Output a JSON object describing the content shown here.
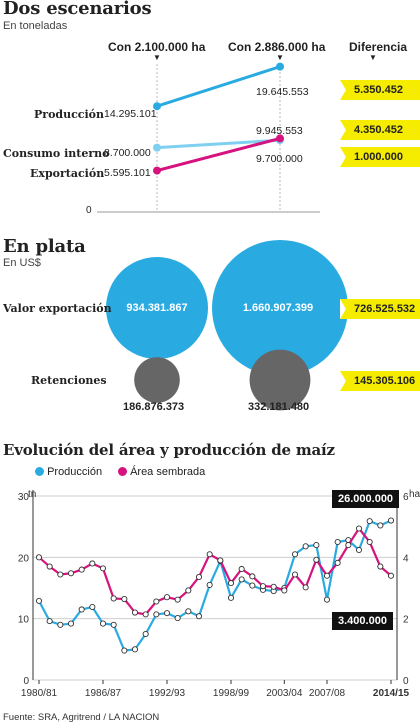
{
  "section1": {
    "title": "Dos escenarios",
    "subtitle": "En toneladas",
    "col_left": "Con 2.100.000 ha",
    "col_right": "Con 2.886.000 ha",
    "col_diff": "Diferencia",
    "zero": "0"
  },
  "section2": {
    "title": "En plata",
    "subtitle": "En US$",
    "row_export": "Valor exportación",
    "row_ret": "Retenciones",
    "diff_export": "726.525.532",
    "diff_ret": "145.305.106"
  },
  "section3": {
    "title": "Evolución del área y producción de maíz",
    "legend_prod": "Producción",
    "legend_area": "Área sembrada",
    "left_unit": "tn",
    "right_unit": "ha",
    "callout_prod": "26.000.000",
    "callout_area": "3.400.000"
  },
  "footer": "Fuente: SRA, Agritrend / LA NACION",
  "colors": {
    "cyan": "#29abe2",
    "lightblue": "#7fd0f0",
    "magenta": "#d6127e",
    "yellow": "#f5ec00",
    "gray": "#666666"
  },
  "chart_data": [
    {
      "type": "line",
      "title": "Dos escenarios",
      "subtitle": "En toneladas",
      "categories": [
        "Con 2.100.000 ha",
        "Con 2.886.000 ha"
      ],
      "series": [
        {
          "name": "Producción",
          "values": [
            14295101,
            19645553
          ],
          "labels": [
            "14.295.101",
            "19.645.553"
          ],
          "diff": "5.350.452"
        },
        {
          "name": "Consumo interno",
          "values": [
            8700000,
            9700000
          ],
          "labels": [
            "8.700.000",
            "9.700.000"
          ],
          "diff": "1.000.000"
        },
        {
          "name": "Exportación",
          "values": [
            5595101,
            9945553
          ],
          "labels": [
            "5.595.101",
            "9.945.553"
          ],
          "diff": "4.350.452"
        }
      ]
    },
    {
      "type": "scatter",
      "title": "En plata",
      "subtitle": "En US$",
      "categories": [
        "Con 2.100.000 ha",
        "Con 2.886.000 ha"
      ],
      "series": [
        {
          "name": "Valor exportación",
          "values": [
            934381867,
            1660907399
          ],
          "labels": [
            "934.381.867",
            "1.660.907.399"
          ]
        },
        {
          "name": "Retenciones",
          "values": [
            186876373,
            332181480
          ],
          "labels": [
            "186.876.373",
            "332.181.480"
          ]
        }
      ]
    },
    {
      "type": "line",
      "title": "Evolución del área y producción de maíz",
      "x_tick_labels": [
        "1980/81",
        "1986/87",
        "1992/93",
        "1998/99",
        "2003/04",
        "2007/08",
        "2014/15"
      ],
      "y_left": {
        "label": "tn",
        "ticks": [
          "0",
          "10",
          "20",
          "30"
        ],
        "range": [
          0,
          30
        ],
        "unit_scale": "millones"
      },
      "y_right": {
        "label": "ha",
        "ticks": [
          "0",
          "2",
          "4",
          "6"
        ],
        "range": [
          0,
          6
        ],
        "unit_scale": "millones"
      },
      "grid": true,
      "legend": "top-left",
      "series": [
        {
          "name": "Producción",
          "axis": "left",
          "values": [
            12.9,
            9.6,
            9.0,
            9.2,
            11.5,
            11.9,
            9.2,
            9.0,
            4.8,
            5.0,
            7.5,
            10.7,
            10.9,
            10.1,
            11.2,
            10.4,
            15.5,
            19.4,
            13.4,
            16.4,
            15.4,
            14.7,
            14.5,
            15.0,
            20.5,
            21.8,
            22.0,
            13.1,
            22.5,
            22.8,
            21.2,
            25.9,
            25.2,
            26.0
          ]
        },
        {
          "name": "Área sembrada",
          "axis": "left",
          "values": [
            20.0,
            18.5,
            17.2,
            17.4,
            18.0,
            19.0,
            18.2,
            13.3,
            13.2,
            11.0,
            10.7,
            12.8,
            13.5,
            13.1,
            14.6,
            16.8,
            20.5,
            19.5,
            15.8,
            18.1,
            16.9,
            15.3,
            15.2,
            14.6,
            17.2,
            15.1,
            19.6,
            17.0,
            19.1,
            22.0,
            24.7,
            22.5,
            18.5,
            17.0
          ]
        }
      ],
      "annotations": [
        "26.000.000",
        "3.400.000"
      ]
    }
  ]
}
